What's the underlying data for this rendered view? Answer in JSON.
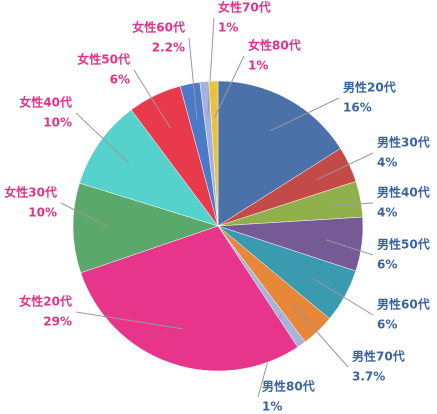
{
  "chart_data": {
    "type": "pie",
    "categories": [
      "男性20代",
      "男性30代",
      "男性40代",
      "男性50代",
      "男性60代",
      "男性70代",
      "男性80代",
      "女性20代",
      "女性30代",
      "女性40代",
      "女性50代",
      "女性60代",
      "女性70代",
      "女性80代"
    ],
    "values": [
      16,
      4,
      4,
      6,
      6,
      3.7,
      1,
      29,
      10,
      10,
      6,
      2.2,
      1,
      1
    ],
    "value_labels": [
      "16%",
      "4%",
      "4%",
      "6%",
      "6%",
      "3.7%",
      "1%",
      "29%",
      "10%",
      "10%",
      "6%",
      "2.2%",
      "1%",
      "1%"
    ],
    "colors": [
      "#4a72a8",
      "#c44a48",
      "#8fb04a",
      "#755a96",
      "#3a9ab0",
      "#e6873a",
      "#a6b4dc",
      "#e8358c",
      "#5aa86a",
      "#56d2cc",
      "#e83a4a",
      "#4a7ac8",
      "#a6b0dc",
      "#e8c23a"
    ],
    "label_colors": [
      "#3a64a0",
      "#3a64a0",
      "#3a64a0",
      "#3a64a0",
      "#3a64a0",
      "#3a64a0",
      "#3a64a0",
      "#e0348a",
      "#e0348a",
      "#e0348a",
      "#e0348a",
      "#e0348a",
      "#e0348a",
      "#e0348a"
    ]
  }
}
